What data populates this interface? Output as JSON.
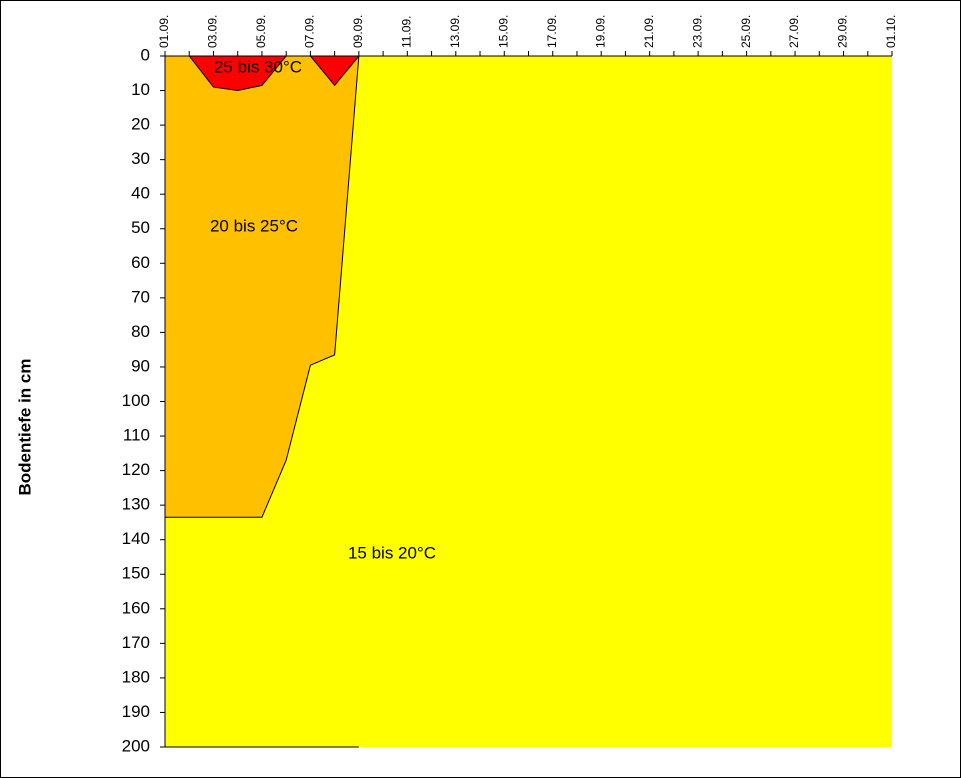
{
  "chart_data": {
    "type": "area",
    "y_label": "Bodentiefe in cm",
    "categories": [
      "01.09.",
      null,
      "03.09.",
      null,
      "05.09.",
      null,
      "07.09.",
      null,
      "09.09.",
      null,
      "11.09.",
      null,
      "13.09.",
      null,
      "15.09.",
      null,
      "17.09.",
      null,
      "19.09.",
      null,
      "21.09.",
      null,
      "23.09.",
      null,
      "25.09.",
      null,
      "27.09.",
      null,
      "29.09.",
      null,
      "01.10."
    ],
    "ylim": [
      0,
      200
    ],
    "y_inverted": true,
    "yticks": [
      0,
      10,
      20,
      30,
      40,
      50,
      60,
      70,
      80,
      90,
      100,
      110,
      120,
      130,
      140,
      150,
      160,
      170,
      180,
      190,
      200
    ],
    "background": "#ffff00",
    "series": [
      {
        "label": "15 bis 20°C",
        "color": "#ffff00",
        "values": [
          200,
          200,
          200,
          200,
          200,
          200,
          200,
          200,
          200,
          null,
          null,
          null,
          null,
          null,
          null,
          null,
          null,
          null,
          null,
          null,
          null,
          null,
          null,
          null,
          null,
          null,
          null,
          null,
          null,
          null,
          null
        ]
      },
      {
        "label": "20 bis 25°C",
        "color": "#ffc000",
        "values": [
          133.5,
          133.5,
          133.5,
          133.5,
          133.5,
          117,
          89.5,
          86.5,
          0,
          null,
          null,
          null,
          null,
          null,
          null,
          null,
          null,
          null,
          null,
          null,
          null,
          null,
          null,
          null,
          null,
          null,
          null,
          null,
          null,
          null,
          null
        ]
      },
      {
        "label": "25 bis 30°C",
        "color": "#ff0000",
        "values": [
          0,
          0,
          9,
          10,
          8.5,
          0,
          0,
          8.5,
          0,
          null,
          null,
          null,
          null,
          null,
          null,
          null,
          null,
          null,
          null,
          null,
          null,
          null,
          null,
          null,
          null,
          null,
          null,
          null,
          null,
          null,
          null
        ]
      }
    ]
  }
}
